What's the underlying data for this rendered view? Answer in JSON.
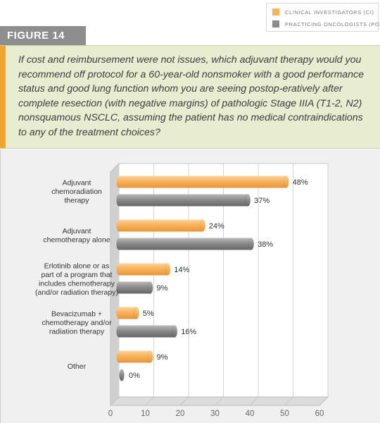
{
  "legend": {
    "ci_label": "CLINICAL INVESTIGATORS (CI)",
    "po_label": "PRACTICING ONCOLOGISTS (PO)"
  },
  "figure": {
    "label": "FIGURE 14",
    "question": "If cost and reimbursement were not issues, which adjuvant therapy would you recommend off protocol for a 60-year-old nonsmoker with a good performance status and good lung function whom you are seeing postop-eratively after complete resection (with negative margins) of pathologic Stage IIIA (T1-2, N2) nonsquamous NSCLC, assuming the patient has no medical contraindications to any of the treatment choices?"
  },
  "colors": {
    "ci": "#f9b25c",
    "po": "#8c8c8c",
    "accent": "#f2a52e",
    "question_bg": "#e8ecd0"
  },
  "chart_data": {
    "type": "bar",
    "orientation": "horizontal",
    "categories": [
      [
        "Adjuvant",
        "chemoradiation",
        "therapy"
      ],
      [
        "Adjuvant",
        "chemotherapy alone"
      ],
      [
        "Erlotinib alone or as",
        "part of a program that",
        "includes chemotherapy",
        "(and/or radiation therapy)"
      ],
      [
        "Bevacizumab +",
        "chemotherapy and/or",
        "radiation therapy"
      ],
      [
        "Other"
      ]
    ],
    "series": [
      {
        "name": "CLINICAL INVESTIGATORS (CI)",
        "values": [
          48,
          24,
          14,
          5,
          9
        ],
        "labels": [
          "48%",
          "24%",
          "14%",
          "5%",
          "9%"
        ]
      },
      {
        "name": "PRACTICING ONCOLOGISTS (PO)",
        "values": [
          37,
          38,
          9,
          16,
          0
        ],
        "labels": [
          "37%",
          "38%",
          "9%",
          "16%",
          "0%"
        ]
      }
    ],
    "xlim": [
      0,
      60
    ],
    "xticks": [
      "0",
      "10",
      "20",
      "30",
      "40",
      "50",
      "60"
    ],
    "grid": true,
    "legend_position": "top-right"
  }
}
